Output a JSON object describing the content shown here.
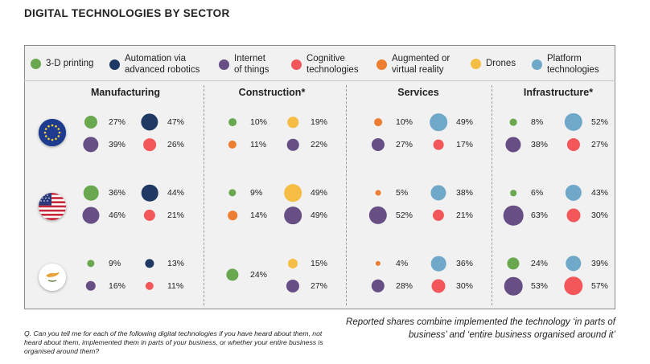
{
  "title": "DIGITAL TECHNOLOGIES BY SECTOR",
  "legend": [
    {
      "key": "printing",
      "label_lines": [
        "3-D printing"
      ],
      "color": "#6aa84f"
    },
    {
      "key": "robotics",
      "label_lines": [
        "Automation via",
        "advanced robotics"
      ],
      "color": "#1f3864"
    },
    {
      "key": "iot",
      "label_lines": [
        "Internet",
        "of things"
      ],
      "color": "#674e85"
    },
    {
      "key": "cognitive",
      "label_lines": [
        "Cognitive",
        "technologies"
      ],
      "color": "#f4575a"
    },
    {
      "key": "ar",
      "label_lines": [
        "Augmented or",
        "virtual reality"
      ],
      "color": "#ed7d31"
    },
    {
      "key": "drones",
      "label_lines": [
        "Drones"
      ],
      "color": "#f6bd44"
    },
    {
      "key": "platform",
      "label_lines": [
        "Platform",
        "technologies"
      ],
      "color": "#6fa8c8"
    }
  ],
  "sectors": [
    "Manufacturing",
    "Construction*",
    "Services",
    "Infrastructure*"
  ],
  "regions": [
    {
      "name": "EU",
      "flag": "eu-flag"
    },
    {
      "name": "US",
      "flag": "us-flag"
    },
    {
      "name": "Cyprus",
      "flag": "cyprus-flag"
    }
  ],
  "chart_data": {
    "type": "bubble-matrix",
    "title": "DIGITAL TECHNOLOGIES BY SECTOR",
    "unit": "%",
    "cells": [
      {
        "region": "EU",
        "sector": "Manufacturing",
        "items": [
          {
            "tech": "printing",
            "value": 27
          },
          {
            "tech": "robotics",
            "value": 47
          },
          {
            "tech": "iot",
            "value": 39
          },
          {
            "tech": "cognitive",
            "value": 26
          }
        ]
      },
      {
        "region": "EU",
        "sector": "Construction*",
        "items": [
          {
            "tech": "printing",
            "value": 10
          },
          {
            "tech": "drones",
            "value": 19
          },
          {
            "tech": "ar",
            "value": 11
          },
          {
            "tech": "iot",
            "value": 22
          }
        ]
      },
      {
        "region": "EU",
        "sector": "Services",
        "items": [
          {
            "tech": "ar",
            "value": 10
          },
          {
            "tech": "platform",
            "value": 49
          },
          {
            "tech": "iot",
            "value": 27
          },
          {
            "tech": "cognitive",
            "value": 17
          }
        ]
      },
      {
        "region": "EU",
        "sector": "Infrastructure*",
        "items": [
          {
            "tech": "printing",
            "value": 8
          },
          {
            "tech": "platform",
            "value": 52
          },
          {
            "tech": "iot",
            "value": 38
          },
          {
            "tech": "cognitive",
            "value": 27
          }
        ]
      },
      {
        "region": "US",
        "sector": "Manufacturing",
        "items": [
          {
            "tech": "printing",
            "value": 36
          },
          {
            "tech": "robotics",
            "value": 44
          },
          {
            "tech": "iot",
            "value": 46
          },
          {
            "tech": "cognitive",
            "value": 21
          }
        ]
      },
      {
        "region": "US",
        "sector": "Construction*",
        "items": [
          {
            "tech": "printing",
            "value": 9
          },
          {
            "tech": "drones",
            "value": 49
          },
          {
            "tech": "ar",
            "value": 14
          },
          {
            "tech": "iot",
            "value": 49
          }
        ]
      },
      {
        "region": "US",
        "sector": "Services",
        "items": [
          {
            "tech": "ar",
            "value": 5
          },
          {
            "tech": "platform",
            "value": 38
          },
          {
            "tech": "iot",
            "value": 52
          },
          {
            "tech": "cognitive",
            "value": 21
          }
        ]
      },
      {
        "region": "US",
        "sector": "Infrastructure*",
        "items": [
          {
            "tech": "printing",
            "value": 6
          },
          {
            "tech": "platform",
            "value": 43
          },
          {
            "tech": "iot",
            "value": 63
          },
          {
            "tech": "cognitive",
            "value": 30
          }
        ]
      },
      {
        "region": "Cyprus",
        "sector": "Manufacturing",
        "items": [
          {
            "tech": "printing",
            "value": 9
          },
          {
            "tech": "robotics",
            "value": 13
          },
          {
            "tech": "iot",
            "value": 16
          },
          {
            "tech": "cognitive",
            "value": 11
          }
        ]
      },
      {
        "region": "Cyprus",
        "sector": "Construction*",
        "items": [
          {
            "tech": "printing",
            "value": 24
          },
          {
            "tech": "drones",
            "value": 15
          },
          {
            "tech": "iot",
            "value": 27
          }
        ]
      },
      {
        "region": "Cyprus",
        "sector": "Services",
        "items": [
          {
            "tech": "ar",
            "value": 4
          },
          {
            "tech": "platform",
            "value": 36
          },
          {
            "tech": "iot",
            "value": 28
          },
          {
            "tech": "cognitive",
            "value": 30
          }
        ]
      },
      {
        "region": "Cyprus",
        "sector": "Infrastructure*",
        "items": [
          {
            "tech": "printing",
            "value": 24
          },
          {
            "tech": "platform",
            "value": 39
          },
          {
            "tech": "iot",
            "value": 53
          },
          {
            "tech": "cognitive",
            "value": 57
          }
        ]
      }
    ]
  },
  "note_right": "Reported shares combine implemented the technology ‘in parts of business’ and ‘entire business organised around it’",
  "note_left": "Q. Can you tell me for each of the following digital technologies if you have heard about them, not heard about them, implemented them in parts of your business, or whether your entire business is organised around them?"
}
